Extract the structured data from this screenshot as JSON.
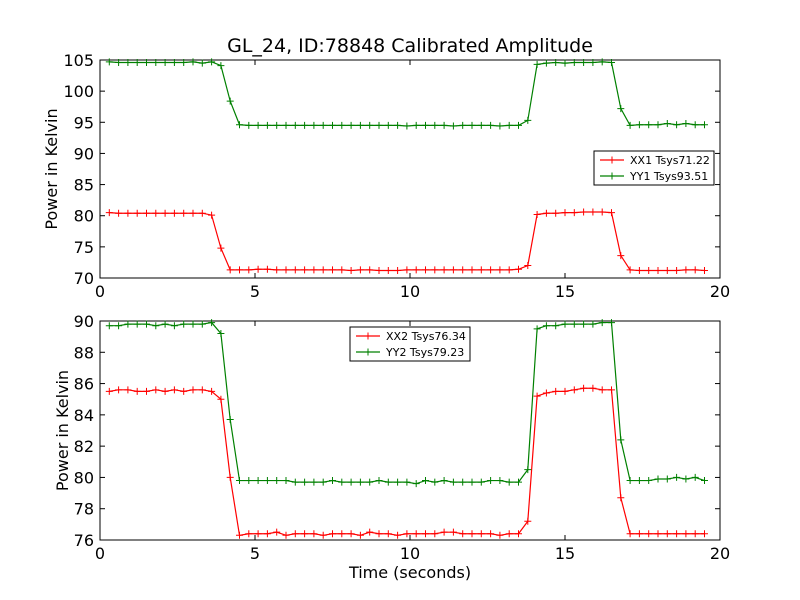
{
  "chart_data": [
    {
      "type": "line",
      "title": "GL_24, ID:78848 Calibrated Amplitude",
      "xlabel": "",
      "ylabel": "Power in Kelvin",
      "xlim": [
        0,
        20
      ],
      "ylim": [
        70,
        105
      ],
      "xticks": [
        "0",
        "5",
        "10",
        "15",
        "20"
      ],
      "yticks": [
        "70",
        "75",
        "80",
        "85",
        "90",
        "95",
        "100",
        "105"
      ],
      "legend_position": "center-right",
      "x": [
        0.3,
        0.6,
        0.9,
        1.2,
        1.5,
        1.8,
        2.1,
        2.4,
        2.7,
        3.0,
        3.3,
        3.6,
        3.9,
        4.2,
        4.5,
        4.8,
        5.1,
        5.4,
        5.7,
        6.0,
        6.3,
        6.6,
        6.9,
        7.2,
        7.5,
        7.8,
        8.1,
        8.4,
        8.7,
        9.0,
        9.3,
        9.6,
        9.9,
        10.2,
        10.5,
        10.8,
        11.1,
        11.4,
        11.7,
        12.0,
        12.3,
        12.6,
        12.9,
        13.2,
        13.5,
        13.8,
        14.1,
        14.4,
        14.7,
        15.0,
        15.3,
        15.6,
        15.9,
        16.2,
        16.5,
        16.8,
        17.1,
        17.4,
        17.7,
        18.0,
        18.3,
        18.6,
        18.9,
        19.2,
        19.5
      ],
      "series": [
        {
          "name": "XX1 Tsys71.22",
          "color": "#ff0000",
          "values": [
            80.5,
            80.4,
            80.4,
            80.4,
            80.4,
            80.4,
            80.4,
            80.4,
            80.4,
            80.4,
            80.4,
            80.1,
            74.8,
            71.3,
            71.3,
            71.3,
            71.4,
            71.4,
            71.3,
            71.3,
            71.3,
            71.3,
            71.3,
            71.3,
            71.3,
            71.3,
            71.2,
            71.3,
            71.3,
            71.2,
            71.2,
            71.2,
            71.3,
            71.3,
            71.3,
            71.3,
            71.3,
            71.3,
            71.3,
            71.3,
            71.3,
            71.3,
            71.3,
            71.3,
            71.4,
            72.0,
            80.2,
            80.4,
            80.4,
            80.5,
            80.5,
            80.6,
            80.6,
            80.6,
            80.5,
            73.6,
            71.3,
            71.2,
            71.2,
            71.2,
            71.2,
            71.2,
            71.3,
            71.3,
            71.2
          ]
        },
        {
          "name": "YY1 Tsys93.51",
          "color": "#008000",
          "values": [
            104.7,
            104.6,
            104.6,
            104.6,
            104.6,
            104.6,
            104.6,
            104.6,
            104.6,
            104.7,
            104.5,
            104.7,
            104.1,
            98.4,
            94.6,
            94.5,
            94.5,
            94.5,
            94.5,
            94.5,
            94.5,
            94.5,
            94.5,
            94.5,
            94.5,
            94.5,
            94.5,
            94.5,
            94.5,
            94.5,
            94.5,
            94.5,
            94.4,
            94.5,
            94.5,
            94.5,
            94.5,
            94.4,
            94.5,
            94.5,
            94.5,
            94.5,
            94.4,
            94.5,
            94.5,
            95.3,
            104.3,
            104.5,
            104.6,
            104.5,
            104.6,
            104.6,
            104.6,
            104.7,
            104.6,
            97.2,
            94.5,
            94.6,
            94.6,
            94.6,
            94.8,
            94.6,
            94.8,
            94.6,
            94.6
          ]
        }
      ]
    },
    {
      "type": "line",
      "title": "",
      "xlabel": "Time (seconds)",
      "ylabel": "Power in Kelvin",
      "xlim": [
        0,
        20
      ],
      "ylim": [
        76,
        90
      ],
      "xticks": [
        "0",
        "5",
        "10",
        "15",
        "20"
      ],
      "yticks": [
        "76",
        "78",
        "80",
        "82",
        "84",
        "86",
        "88",
        "90"
      ],
      "legend_position": "upper-center",
      "x": [
        0.3,
        0.6,
        0.9,
        1.2,
        1.5,
        1.8,
        2.1,
        2.4,
        2.7,
        3.0,
        3.3,
        3.6,
        3.9,
        4.2,
        4.5,
        4.8,
        5.1,
        5.4,
        5.7,
        6.0,
        6.3,
        6.6,
        6.9,
        7.2,
        7.5,
        7.8,
        8.1,
        8.4,
        8.7,
        9.0,
        9.3,
        9.6,
        9.9,
        10.2,
        10.5,
        10.8,
        11.1,
        11.4,
        11.7,
        12.0,
        12.3,
        12.6,
        12.9,
        13.2,
        13.5,
        13.8,
        14.1,
        14.4,
        14.7,
        15.0,
        15.3,
        15.6,
        15.9,
        16.2,
        16.5,
        16.8,
        17.1,
        17.4,
        17.7,
        18.0,
        18.3,
        18.6,
        18.9,
        19.2,
        19.5
      ],
      "series": [
        {
          "name": "XX2 Tsys76.34",
          "color": "#ff0000",
          "values": [
            85.5,
            85.6,
            85.6,
            85.5,
            85.5,
            85.6,
            85.5,
            85.6,
            85.5,
            85.6,
            85.6,
            85.5,
            85.0,
            80.0,
            76.3,
            76.4,
            76.4,
            76.4,
            76.5,
            76.3,
            76.4,
            76.4,
            76.4,
            76.3,
            76.4,
            76.4,
            76.4,
            76.3,
            76.5,
            76.4,
            76.4,
            76.3,
            76.4,
            76.4,
            76.4,
            76.4,
            76.5,
            76.5,
            76.4,
            76.4,
            76.4,
            76.4,
            76.3,
            76.4,
            76.4,
            77.2,
            85.2,
            85.4,
            85.5,
            85.5,
            85.6,
            85.7,
            85.7,
            85.6,
            85.6,
            78.7,
            76.4,
            76.4,
            76.4,
            76.4,
            76.4,
            76.4,
            76.4,
            76.4,
            76.4
          ]
        },
        {
          "name": "YY2 Tsys79.23",
          "color": "#008000",
          "values": [
            89.7,
            89.7,
            89.8,
            89.8,
            89.8,
            89.7,
            89.8,
            89.7,
            89.8,
            89.8,
            89.8,
            89.9,
            89.2,
            83.7,
            79.8,
            79.8,
            79.8,
            79.8,
            79.8,
            79.8,
            79.7,
            79.7,
            79.7,
            79.7,
            79.8,
            79.7,
            79.7,
            79.7,
            79.7,
            79.8,
            79.7,
            79.7,
            79.7,
            79.6,
            79.8,
            79.7,
            79.8,
            79.7,
            79.7,
            79.7,
            79.7,
            79.8,
            79.8,
            79.7,
            79.7,
            80.5,
            89.5,
            89.7,
            89.7,
            89.8,
            89.8,
            89.8,
            89.8,
            89.9,
            89.9,
            82.4,
            79.8,
            79.8,
            79.8,
            79.9,
            79.9,
            80.0,
            79.9,
            80.0,
            79.8
          ]
        }
      ]
    }
  ]
}
